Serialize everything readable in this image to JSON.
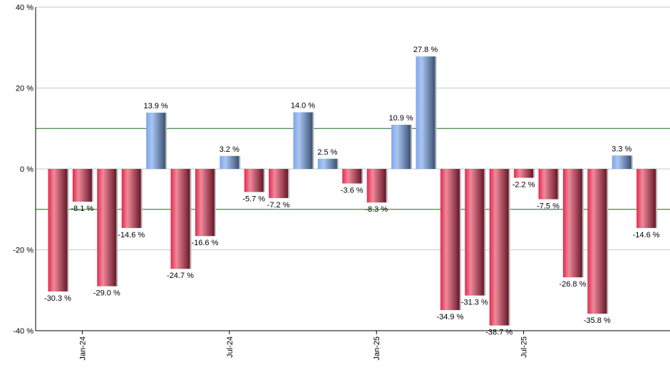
{
  "chart_data": {
    "type": "bar",
    "xlabel": "",
    "ylabel": "",
    "ylim": [
      -40,
      40
    ],
    "y_ticks": [
      40,
      20,
      0,
      -20,
      -40
    ],
    "y_tick_suffix": " %",
    "reference_lines": [
      10,
      -10
    ],
    "grid": true,
    "x_tick_labels": [
      {
        "index": 1,
        "label": "Jan-24"
      },
      {
        "index": 7,
        "label": "Jul-24"
      },
      {
        "index": 13,
        "label": "Jan-25"
      },
      {
        "index": 19,
        "label": "Jul-25"
      }
    ],
    "values": [
      -30.3,
      -8.1,
      -29.0,
      -14.6,
      13.9,
      -24.7,
      -16.6,
      3.2,
      -5.7,
      -7.2,
      14.0,
      2.5,
      -3.6,
      -8.3,
      10.9,
      27.8,
      -34.9,
      -31.3,
      -38.7,
      -2.2,
      -7.5,
      -26.8,
      -35.8,
      3.3,
      -14.6
    ],
    "colors": {
      "positive": "#7fa6e8",
      "negative": "#e0304f",
      "reference_line": "#1a6a1a",
      "grid": "#c8c8c8"
    }
  }
}
